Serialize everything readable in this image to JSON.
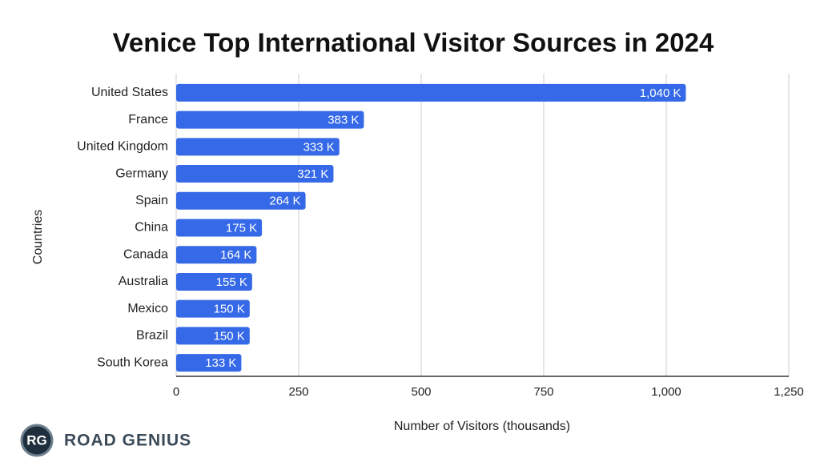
{
  "chart_data": {
    "type": "barh",
    "title": "Venice Top International Visitor Sources in 2024",
    "x_label": "Number of Visitors (thousands)",
    "y_label": "Countries",
    "categories": [
      "United States",
      "France",
      "United Kingdom",
      "Germany",
      "Spain",
      "China",
      "Canada",
      "Australia",
      "Mexico",
      "Brazil",
      "South Korea"
    ],
    "values": [
      1040,
      383,
      333,
      321,
      264,
      175,
      164,
      155,
      150,
      150,
      133
    ],
    "value_labels": [
      "1,040 K",
      "383 K",
      "333 K",
      "321 K",
      "264 K",
      "175 K",
      "164 K",
      "155 K",
      "150 K",
      "150 K",
      "133 K"
    ],
    "color": "#3569e7",
    "xlim": [
      0,
      1250
    ],
    "xticks": [
      0,
      250,
      500,
      750,
      {
        "value": 1000,
        "label": "1,000"
      },
      {
        "value": 1250,
        "label": "1,250"
      }
    ],
    "grid": true
  },
  "logo": {
    "badge": "RG",
    "name": "ROAD GENIUS"
  }
}
